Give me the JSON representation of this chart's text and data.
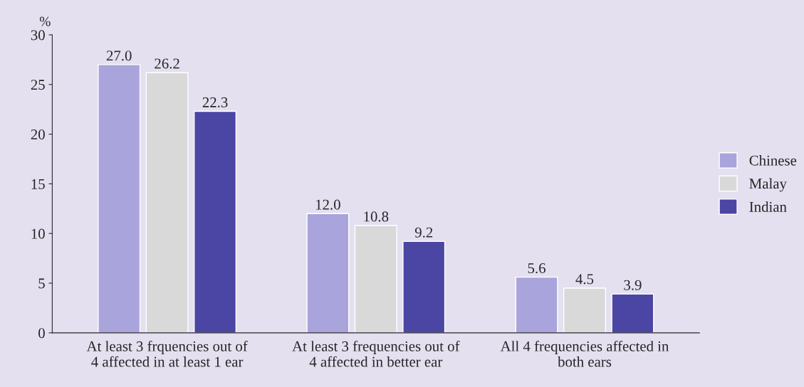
{
  "chart_data": {
    "type": "bar",
    "ylabel": "%",
    "categories": [
      "At least 3 frquencies out of\n4 affected in at least 1 ear",
      "At least 3 frequencies out of\n4 affected in better ear",
      "All 4 frequencies affected in\nboth ears"
    ],
    "series": [
      {
        "name": "Chinese",
        "color": "#aaa4dc",
        "values": [
          27.0,
          12.0,
          5.6
        ],
        "value_labels": [
          "27.0",
          "12.0",
          "5.6"
        ]
      },
      {
        "name": "Malay",
        "color": "#d9d9d9",
        "values": [
          26.2,
          10.8,
          4.5
        ],
        "value_labels": [
          "26.2",
          "10.8",
          "4.5"
        ]
      },
      {
        "name": "Indian",
        "color": "#4b46a3",
        "values": [
          22.3,
          9.2,
          3.9
        ],
        "value_labels": [
          "22.3",
          "9.2",
          "3.9"
        ]
      }
    ],
    "ylim": [
      0,
      30
    ],
    "yticks": [
      0,
      5,
      10,
      15,
      20,
      25,
      30
    ],
    "legend": "right",
    "grid": false
  }
}
